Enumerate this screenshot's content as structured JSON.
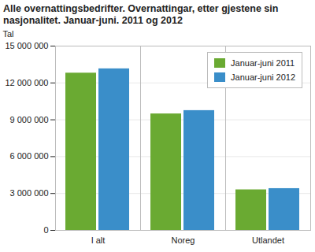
{
  "chart_data": {
    "type": "bar",
    "title": "Alle overnattingsbedrifter. Overnattingar, etter gjestene sin nasjonalitet. Januar-juni. 2011 og 2012",
    "ylabel": "Tal",
    "categories": [
      "I alt",
      "Noreg",
      "Utlandet"
    ],
    "series": [
      {
        "name": "Januar-juni 2011",
        "color": "#6aaa32",
        "values": [
          12800000,
          9480000,
          3300000
        ]
      },
      {
        "name": "Januar-juni 2012",
        "color": "#3a8ec9",
        "values": [
          13150000,
          9750000,
          3400000
        ]
      }
    ],
    "ylim": [
      0,
      15000000
    ],
    "yticks": [
      0,
      {
        "value": 3000000,
        "label": "3 000 000"
      },
      {
        "value": 6000000,
        "label": "6 000 000"
      },
      {
        "value": 9000000,
        "label": "9 000 000"
      },
      {
        "value": 12000000,
        "label": "12 000 000"
      },
      {
        "value": 15000000,
        "label": "15 000 000"
      }
    ],
    "grid": true,
    "legend": "upper right"
  }
}
